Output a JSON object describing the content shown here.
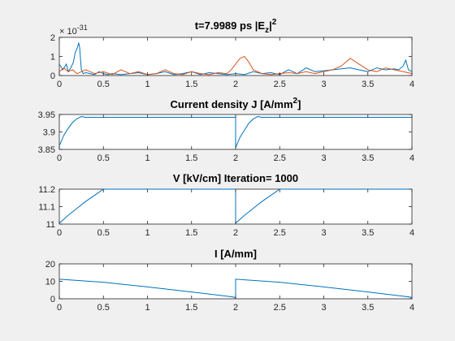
{
  "figure": {
    "background": "#f0f0f0"
  },
  "chart_data": [
    {
      "type": "line",
      "title": "t=7.9989 ps     |E_z|^2",
      "title_parts": [
        "t=7.9989 ps     |E",
        "z",
        "|",
        "2"
      ],
      "y_exponent_label": [
        "× 10",
        "-31"
      ],
      "xlim": [
        0,
        4
      ],
      "ylim": [
        0,
        2
      ],
      "xticks": [
        "0",
        "0.5",
        "1",
        "1.5",
        "2",
        "2.5",
        "3",
        "3.5",
        "4"
      ],
      "yticks": [
        "0",
        "1",
        "2"
      ],
      "series": [
        {
          "color": "#0072bd",
          "x": [
            0,
            0.04,
            0.08,
            0.1,
            0.13,
            0.16,
            0.18,
            0.2,
            0.22,
            0.23,
            0.24,
            0.25,
            0.27,
            0.3,
            0.35,
            0.4,
            0.45,
            0.5,
            0.55,
            0.6,
            0.7,
            0.8,
            0.9,
            1.0,
            1.1,
            1.2,
            1.3,
            1.4,
            1.5,
            1.6,
            1.7,
            1.8,
            1.9,
            2.0,
            2.1,
            2.2,
            2.3,
            2.4,
            2.5,
            2.6,
            2.7,
            2.8,
            2.9,
            3.0,
            3.1,
            3.2,
            3.3,
            3.4,
            3.5,
            3.6,
            3.7,
            3.8,
            3.85,
            3.9,
            3.93,
            3.96,
            4.0
          ],
          "y": [
            0.6,
            0.3,
            0.6,
            0.2,
            0.4,
            0.7,
            1.2,
            1.4,
            1.7,
            1.5,
            0.9,
            0.3,
            0.1,
            0.15,
            0.1,
            0.05,
            0.2,
            0.1,
            0.05,
            0.1,
            0.05,
            0.1,
            0.15,
            0.05,
            0.1,
            0.2,
            0.05,
            0.1,
            0.2,
            0.05,
            0.15,
            0.1,
            0.05,
            0.1,
            0.05,
            0.2,
            0.1,
            0.15,
            0.05,
            0.3,
            0.1,
            0.4,
            0.2,
            0.25,
            0.3,
            0.35,
            0.4,
            0.3,
            0.2,
            0.4,
            0.3,
            0.35,
            0.3,
            0.5,
            0.8,
            0.3,
            0.2
          ]
        },
        {
          "color": "#d95319",
          "x": [
            0,
            0.05,
            0.1,
            0.15,
            0.2,
            0.25,
            0.3,
            0.4,
            0.5,
            0.6,
            0.7,
            0.8,
            0.9,
            1.0,
            1.1,
            1.2,
            1.3,
            1.4,
            1.5,
            1.6,
            1.7,
            1.8,
            1.9,
            1.95,
            2.0,
            2.05,
            2.1,
            2.15,
            2.2,
            2.3,
            2.4,
            2.5,
            2.6,
            2.7,
            2.8,
            2.9,
            3.0,
            3.1,
            3.2,
            3.25,
            3.3,
            3.4,
            3.5,
            3.6,
            3.7,
            3.8,
            3.9,
            4.0
          ],
          "y": [
            0.2,
            0.4,
            0.2,
            0.3,
            0.1,
            0.2,
            0.3,
            0.1,
            0.2,
            0.05,
            0.3,
            0.1,
            0.2,
            0.05,
            0.1,
            0.3,
            0.1,
            0.05,
            0.2,
            0.1,
            0.05,
            0.15,
            0.1,
            0.3,
            0.6,
            0.9,
            1.0,
            0.7,
            0.3,
            0.1,
            0.05,
            0.1,
            0.15,
            0.1,
            0.2,
            0.1,
            0.2,
            0.3,
            0.5,
            0.7,
            0.9,
            0.6,
            0.3,
            0.2,
            0.4,
            0.3,
            0.2,
            0.1
          ]
        }
      ]
    },
    {
      "type": "line",
      "title": "Current density J [A/mm^2]",
      "title_parts": [
        "Current density J [A/mm",
        "2",
        "]"
      ],
      "xlim": [
        0,
        4
      ],
      "ylim": [
        3.85,
        3.95
      ],
      "xticks": [
        "0",
        "0.5",
        "1",
        "1.5",
        "2",
        "2.5",
        "3",
        "3.5",
        "4"
      ],
      "yticks": [
        "3.85",
        "3.9",
        "3.95"
      ],
      "series": [
        {
          "color": "#0072bd",
          "x": [
            0,
            0.05,
            0.1,
            0.15,
            0.2,
            0.25,
            0.3,
            1.0,
            2.0,
            2.0001,
            2.05,
            2.1,
            2.15,
            2.2,
            2.25,
            2.3,
            3.0,
            4.0
          ],
          "y": [
            3.86,
            3.89,
            3.91,
            3.927,
            3.938,
            3.944,
            3.942,
            3.942,
            3.942,
            3.855,
            3.885,
            3.905,
            3.925,
            3.937,
            3.944,
            3.942,
            3.942,
            3.942
          ]
        }
      ]
    },
    {
      "type": "line",
      "title": "V [kV/cm]   Iteration= 1000",
      "title_parts": [
        "V [kV/cm]   Iteration= 1000"
      ],
      "xlim": [
        0,
        4
      ],
      "ylim": [
        11.0,
        11.2
      ],
      "xticks": [
        "0",
        "0.5",
        "1",
        "1.5",
        "2",
        "2.5",
        "3",
        "3.5",
        "4"
      ],
      "yticks": [
        "11",
        "11.1",
        "11.2"
      ],
      "series": [
        {
          "color": "#0072bd",
          "x": [
            0,
            0.1,
            0.2,
            0.3,
            0.4,
            0.5,
            1.0,
            2.0,
            2.0001,
            2.1,
            2.2,
            2.3,
            2.4,
            2.5,
            3.0,
            4.0
          ],
          "y": [
            11.005,
            11.05,
            11.09,
            11.13,
            11.165,
            11.2,
            11.2,
            11.2,
            11.005,
            11.05,
            11.09,
            11.13,
            11.165,
            11.2,
            11.2,
            11.2
          ]
        }
      ]
    },
    {
      "type": "line",
      "title": "I [A/mm]",
      "title_parts": [
        "I [A/mm]"
      ],
      "xlim": [
        0,
        4
      ],
      "ylim": [
        0,
        20
      ],
      "xticks": [
        "0",
        "0.5",
        "1",
        "1.5",
        "2",
        "2.5",
        "3",
        "3.5",
        "4"
      ],
      "yticks": [
        "0",
        "10",
        "20"
      ],
      "series": [
        {
          "color": "#0072bd",
          "x": [
            0,
            0.5,
            1.0,
            1.5,
            1.98,
            2.0,
            2.0001,
            2.5,
            3.0,
            3.5,
            3.98,
            4.0
          ],
          "y": [
            11.2,
            9.5,
            6.8,
            3.9,
            1.0,
            0.2,
            11.2,
            9.5,
            6.8,
            3.9,
            1.0,
            0.2
          ]
        }
      ]
    }
  ]
}
